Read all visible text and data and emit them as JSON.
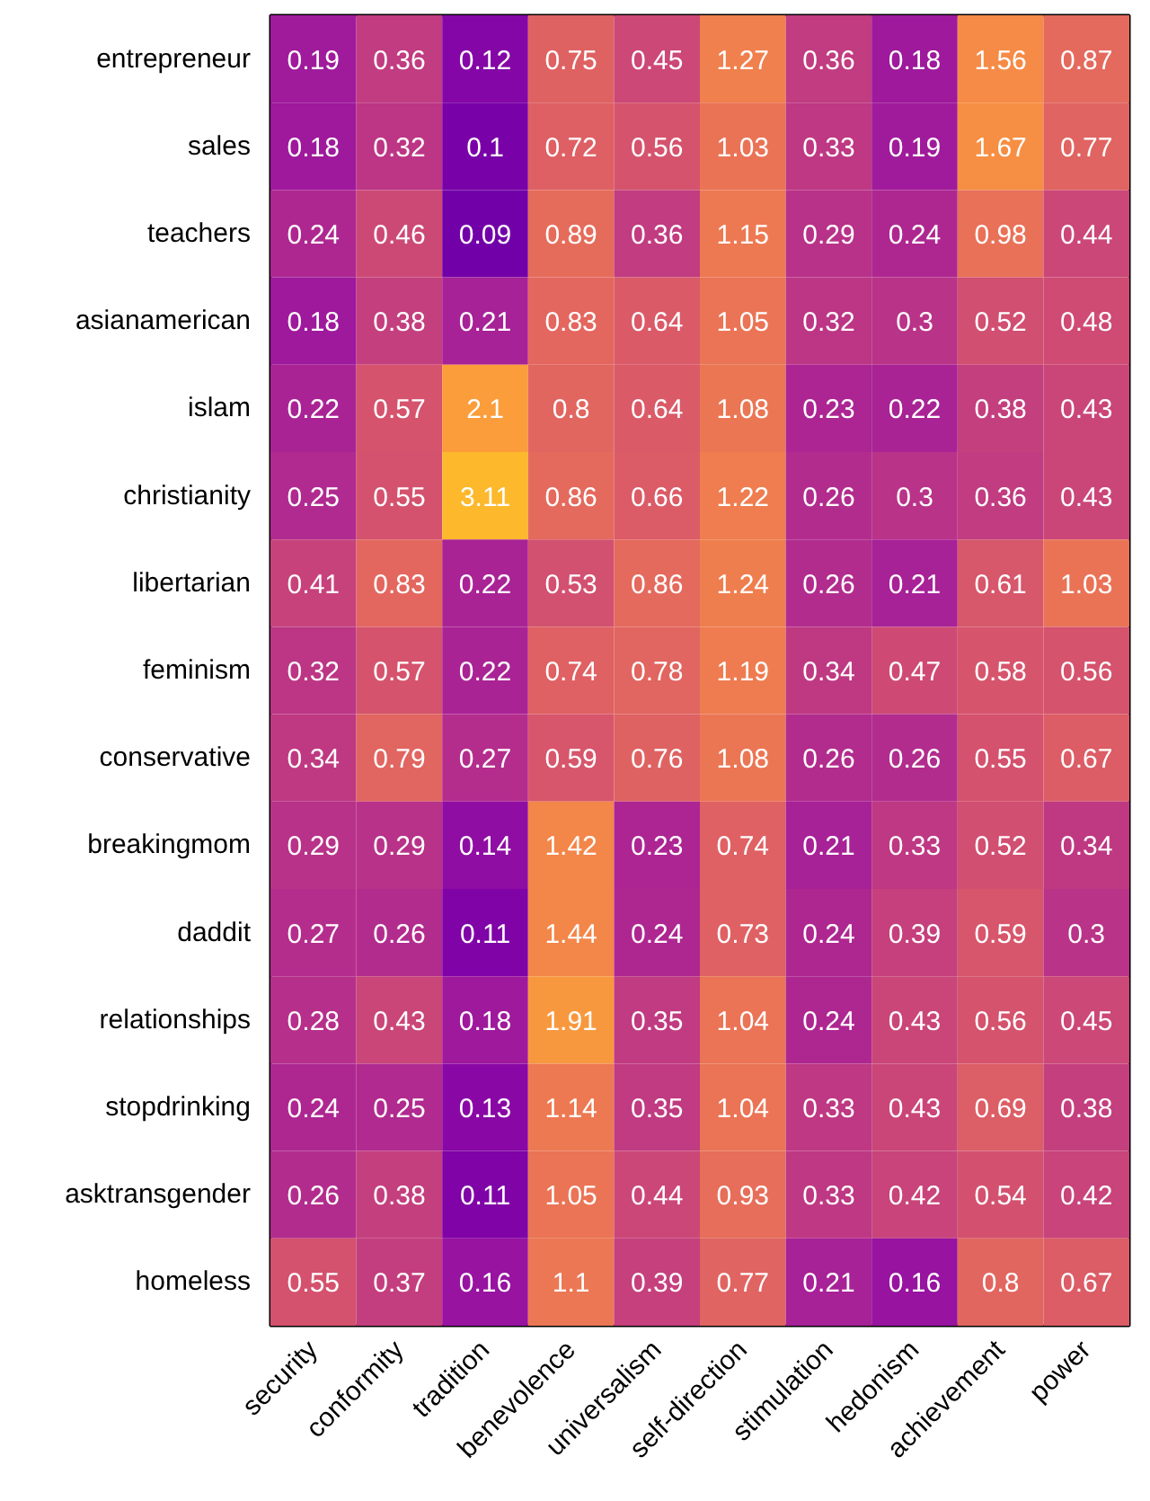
{
  "chart_data": {
    "type": "heatmap",
    "data_labels": true,
    "categories": [
      "security",
      "conformity",
      "tradition",
      "benevolence",
      "universalism",
      "self-direction",
      "stimulation",
      "hedonism",
      "achievement",
      "power"
    ],
    "y_categories": [
      "entrepreneur",
      "sales",
      "teachers",
      "asianamerican",
      "islam",
      "christianity",
      "libertarian",
      "feminism",
      "conservative",
      "breakingmom",
      "daddit",
      "relationships",
      "stopdrinking",
      "asktransgender",
      "homeless"
    ],
    "cells": [
      [
        0.19,
        0.36,
        0.12,
        0.75,
        0.45,
        1.27,
        0.36,
        0.18,
        1.56,
        0.87
      ],
      [
        0.18,
        0.32,
        0.1,
        0.72,
        0.56,
        1.03,
        0.33,
        0.19,
        1.67,
        0.77
      ],
      [
        0.24,
        0.46,
        0.09,
        0.89,
        0.36,
        1.15,
        0.29,
        0.24,
        0.98,
        0.44
      ],
      [
        0.18,
        0.38,
        0.21,
        0.83,
        0.64,
        1.05,
        0.32,
        0.3,
        0.52,
        0.48
      ],
      [
        0.22,
        0.57,
        2.1,
        0.8,
        0.64,
        1.08,
        0.23,
        0.22,
        0.38,
        0.43
      ],
      [
        0.25,
        0.55,
        3.11,
        0.86,
        0.66,
        1.22,
        0.26,
        0.3,
        0.36,
        0.43
      ],
      [
        0.41,
        0.83,
        0.22,
        0.53,
        0.86,
        1.24,
        0.26,
        0.21,
        0.61,
        1.03
      ],
      [
        0.32,
        0.57,
        0.22,
        0.74,
        0.78,
        1.19,
        0.34,
        0.47,
        0.58,
        0.56
      ],
      [
        0.34,
        0.79,
        0.27,
        0.59,
        0.76,
        1.08,
        0.26,
        0.26,
        0.55,
        0.67
      ],
      [
        0.29,
        0.29,
        0.14,
        1.42,
        0.23,
        0.74,
        0.21,
        0.33,
        0.52,
        0.34
      ],
      [
        0.27,
        0.26,
        0.11,
        1.44,
        0.24,
        0.73,
        0.24,
        0.39,
        0.59,
        0.3
      ],
      [
        0.28,
        0.43,
        0.18,
        1.91,
        0.35,
        1.04,
        0.24,
        0.43,
        0.56,
        0.45
      ],
      [
        0.24,
        0.25,
        0.13,
        1.14,
        0.35,
        1.04,
        0.33,
        0.43,
        0.69,
        0.38
      ],
      [
        0.26,
        0.38,
        0.11,
        1.05,
        0.44,
        0.93,
        0.33,
        0.42,
        0.54,
        0.42
      ],
      [
        0.55,
        0.37,
        0.16,
        1.1,
        0.39,
        0.77,
        0.21,
        0.16,
        0.8,
        0.67
      ]
    ]
  }
}
